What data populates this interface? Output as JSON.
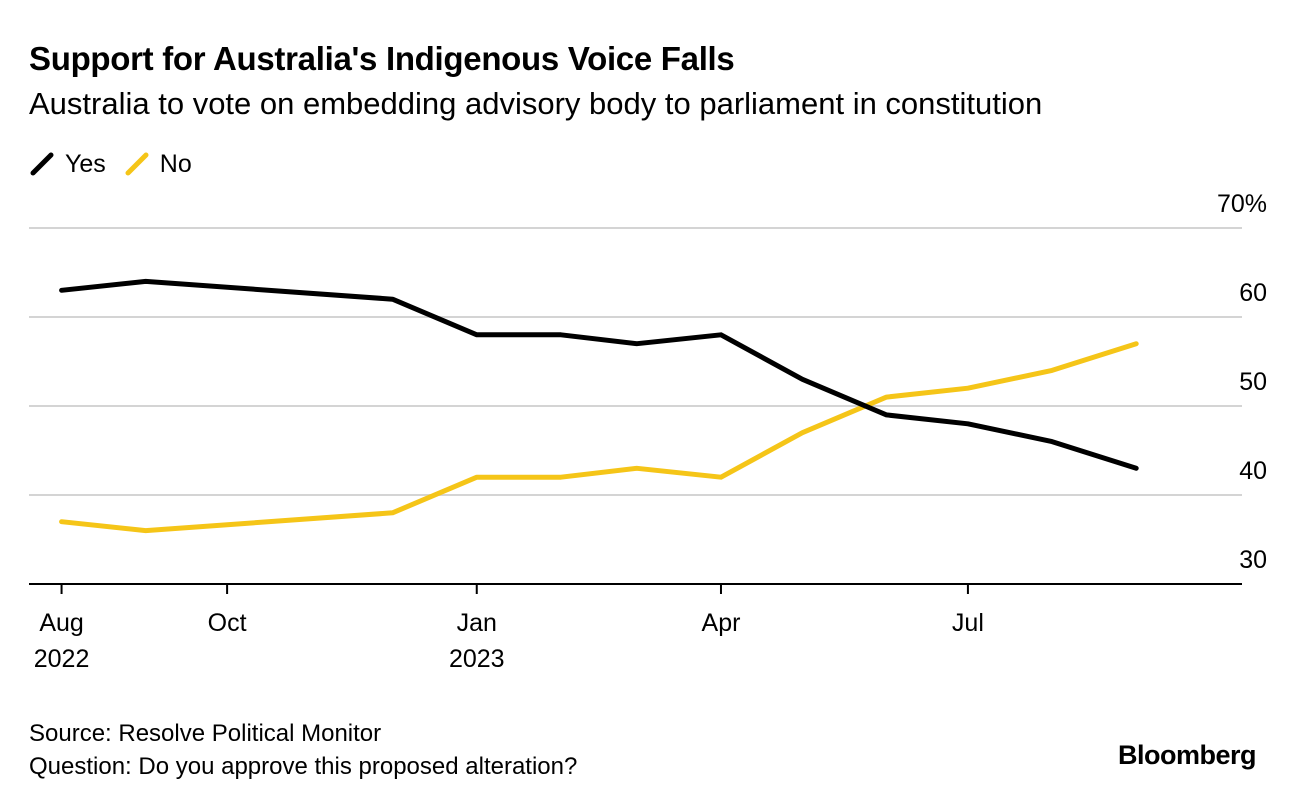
{
  "header": {
    "title": "Support for Australia's Indigenous Voice Falls",
    "subtitle": "Australia to vote on embedding advisory body to parliament in constitution"
  },
  "footer": {
    "source": "Source: Resolve Political Monitor",
    "question": "Question: Do you approve this proposed alteration?",
    "logo": "Bloomberg"
  },
  "chart_data": {
    "type": "line",
    "title": "Support for Australia's Indigenous Voice Falls",
    "subtitle": "Australia to vote on embedding advisory body to parliament in constitution",
    "x": [
      "2022-08-01",
      "2022-09-01",
      "2022-12-01",
      "2023-01-01",
      "2023-02-01",
      "2023-03-01",
      "2023-04-01",
      "2023-05-01",
      "2023-06-01",
      "2023-07-01",
      "2023-08-01",
      "2023-09-01"
    ],
    "series": [
      {
        "name": "Yes",
        "color": "#000000",
        "values": [
          63,
          64,
          62,
          58,
          58,
          57,
          58,
          53,
          49,
          48,
          46,
          43
        ]
      },
      {
        "name": "No",
        "color": "#f5c518",
        "values": [
          37,
          36,
          38,
          42,
          42,
          43,
          42,
          47,
          51,
          52,
          54,
          57
        ]
      }
    ],
    "xlim": [
      "2022-07-20",
      "2023-10-10"
    ],
    "ylim": [
      30,
      70
    ],
    "y_ticks": [
      {
        "value": 70,
        "label": "70%"
      },
      {
        "value": 60,
        "label": "60"
      },
      {
        "value": 50,
        "label": "50"
      },
      {
        "value": 40,
        "label": "40"
      },
      {
        "value": 30,
        "label": "30"
      }
    ],
    "x_ticks": [
      {
        "date": "2022-08-01",
        "label": "Aug",
        "sublabel": "2022"
      },
      {
        "date": "2022-10-01",
        "label": "Oct",
        "sublabel": ""
      },
      {
        "date": "2023-01-01",
        "label": "Jan",
        "sublabel": "2023"
      },
      {
        "date": "2023-04-01",
        "label": "Apr",
        "sublabel": ""
      },
      {
        "date": "2023-07-01",
        "label": "Jul",
        "sublabel": ""
      }
    ],
    "grid": true,
    "y_axis_position": "right",
    "legend_position": "top-left"
  }
}
